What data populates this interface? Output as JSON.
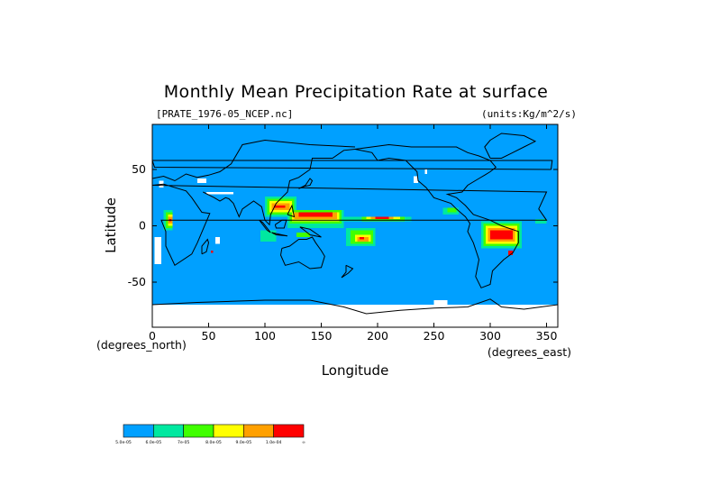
{
  "chart_data": {
    "type": "heatmap",
    "title": "Monthly Mean Precipitation Rate at surface",
    "source_label": "[PRATE_1976-05_NCEP.nc]",
    "units_label": "(units:Kg/m^2/s)",
    "xlabel": "Longitude",
    "ylabel": "Latitude",
    "x_unit_label": "(degrees_east)",
    "y_unit_label": "(degrees_north)",
    "xlim": [
      0,
      360
    ],
    "ylim": [
      -90,
      90
    ],
    "x_ticks": [
      "0",
      "50",
      "100",
      "150",
      "200",
      "250",
      "300",
      "350"
    ],
    "x_tick_values": [
      0,
      50,
      100,
      150,
      200,
      250,
      300,
      350
    ],
    "y_ticks": [
      "50",
      "0",
      "-50"
    ],
    "y_tick_values": [
      50,
      0,
      -50
    ],
    "colorbar": {
      "colors": [
        "#00a0ff",
        "#00e8a0",
        "#40ff00",
        "#ffff00",
        "#ffa000",
        "#ff0000"
      ],
      "labels": [
        "5.0e-05",
        "6.0e-05",
        "7e-05",
        "8.0e-05",
        "9.0e-05",
        "1.0e-04",
        "∞"
      ]
    },
    "background_color": "#00a0ff",
    "regions": [
      {
        "level": "no_data",
        "cells": [
          [
            6,
            34,
            10,
            40
          ],
          [
            48,
            30,
            72,
            28
          ],
          [
            2,
            -10,
            8,
            -34
          ],
          [
            60,
            -10,
            56,
            -16
          ],
          [
            0,
            -70,
            360,
            -90
          ],
          [
            232,
            44,
            236,
            38
          ],
          [
            242,
            50,
            244,
            46
          ],
          [
            40,
            42,
            48,
            38
          ],
          [
            250,
            -70,
            262,
            -66
          ]
        ]
      },
      {
        "level": 1,
        "cells": [
          [
            8,
            16,
            20,
            -8
          ],
          [
            96,
            28,
            130,
            4
          ],
          [
            112,
            16,
            170,
            -6
          ],
          [
            140,
            8,
            240,
            2
          ],
          [
            170,
            0,
            200,
            -20
          ],
          [
            290,
            6,
            330,
            -22
          ],
          [
            255,
            18,
            275,
            8
          ],
          [
            52,
            -18,
            56,
            -28
          ],
          [
            256,
            -26,
            264,
            -32
          ],
          [
            150,
            -36,
            160,
            -42
          ],
          [
            236,
            42,
            244,
            38
          ],
          [
            300,
            44,
            312,
            38
          ]
        ]
      },
      {
        "level": 2,
        "cells": [
          [
            10,
            14,
            18,
            -4
          ],
          [
            100,
            26,
            128,
            8
          ],
          [
            120,
            14,
            170,
            -2
          ],
          [
            150,
            8,
            230,
            4
          ],
          [
            172,
            -2,
            198,
            -18
          ],
          [
            292,
            4,
            328,
            -20
          ],
          [
            258,
            16,
            272,
            10
          ],
          [
            96,
            -4,
            110,
            -14
          ],
          [
            340,
            6,
            350,
            2
          ]
        ]
      },
      {
        "level": 3,
        "cells": [
          [
            12,
            12,
            18,
            -2
          ],
          [
            102,
            24,
            126,
            10
          ],
          [
            122,
            14,
            168,
            2
          ],
          [
            186,
            8,
            224,
            4
          ],
          [
            176,
            -4,
            196,
            -16
          ],
          [
            294,
            2,
            326,
            -18
          ],
          [
            262,
            16,
            270,
            12
          ],
          [
            128,
            -6,
            140,
            -10
          ]
        ]
      },
      {
        "level": 4,
        "cells": [
          [
            14,
            10,
            18,
            0
          ],
          [
            104,
            22,
            124,
            12
          ],
          [
            124,
            12,
            166,
            4
          ],
          [
            190,
            8,
            220,
            6
          ],
          [
            180,
            -8,
            194,
            -14
          ],
          [
            296,
            0,
            324,
            -16
          ]
        ]
      },
      {
        "level": 5,
        "cells": [
          [
            14,
            8,
            18,
            2
          ],
          [
            106,
            20,
            122,
            14
          ],
          [
            126,
            12,
            164,
            6
          ],
          [
            194,
            8,
            214,
            6
          ],
          [
            182,
            -10,
            192,
            -14
          ],
          [
            298,
            -2,
            322,
            -14
          ]
        ]
      },
      {
        "level": 6,
        "cells": [
          [
            15,
            6,
            17,
            4
          ],
          [
            108,
            18,
            118,
            16
          ],
          [
            130,
            12,
            160,
            8
          ],
          [
            198,
            8,
            210,
            6
          ],
          [
            184,
            -10,
            188,
            -12
          ],
          [
            300,
            -4,
            320,
            -12
          ],
          [
            316,
            -22,
            320,
            -26
          ],
          [
            52,
            -22,
            54,
            -24
          ]
        ]
      }
    ],
    "coastlines": [
      [
        [
          0,
          36
        ],
        [
          10,
          37
        ],
        [
          30,
          31
        ],
        [
          35,
          25
        ],
        [
          44,
          12
        ],
        [
          51,
          11
        ],
        [
          40,
          -15
        ],
        [
          35,
          -25
        ],
        [
          20,
          -35
        ],
        [
          12,
          -18
        ],
        [
          12,
          -5
        ],
        [
          8,
          5
        ],
        [
          -10,
          5
        ],
        [
          -17,
          15
        ],
        [
          -10,
          30
        ],
        [
          0,
          36
        ]
      ],
      [
        [
          45,
          30
        ],
        [
          55,
          25
        ],
        [
          60,
          22
        ],
        [
          65,
          25
        ],
        [
          68,
          24
        ],
        [
          72,
          20
        ],
        [
          77,
          8
        ],
        [
          80,
          15
        ],
        [
          90,
          22
        ],
        [
          97,
          17
        ],
        [
          100,
          5
        ],
        [
          104,
          1
        ],
        [
          105,
          10
        ],
        [
          110,
          20
        ],
        [
          120,
          30
        ],
        [
          122,
          40
        ],
        [
          130,
          43
        ],
        [
          140,
          50
        ],
        [
          142,
          60
        ],
        [
          160,
          60
        ],
        [
          170,
          67
        ],
        [
          180,
          68
        ]
      ],
      [
        [
          0,
          42
        ],
        [
          10,
          44
        ],
        [
          20,
          40
        ],
        [
          30,
          46
        ],
        [
          40,
          43
        ],
        [
          50,
          45
        ],
        [
          60,
          48
        ],
        [
          70,
          55
        ],
        [
          80,
          72
        ],
        [
          100,
          76
        ],
        [
          140,
          72
        ],
        [
          180,
          70
        ]
      ],
      [
        [
          180,
          68
        ],
        [
          195,
          65
        ],
        [
          200,
          58
        ],
        [
          210,
          60
        ],
        [
          225,
          58
        ],
        [
          235,
          48
        ],
        [
          236,
          40
        ],
        [
          243,
          34
        ],
        [
          250,
          25
        ],
        [
          265,
          20
        ],
        [
          270,
          15
        ],
        [
          278,
          8
        ],
        [
          282,
          2
        ],
        [
          280,
          -5
        ],
        [
          285,
          -15
        ],
        [
          290,
          -30
        ],
        [
          287,
          -45
        ],
        [
          292,
          -55
        ],
        [
          300,
          -52
        ],
        [
          302,
          -40
        ],
        [
          312,
          -30
        ],
        [
          320,
          -24
        ],
        [
          325,
          -15
        ],
        [
          325,
          -5
        ],
        [
          310,
          0
        ],
        [
          300,
          5
        ],
        [
          285,
          10
        ],
        [
          278,
          18
        ],
        [
          270,
          25
        ],
        [
          262,
          28
        ],
        [
          275,
          30
        ],
        [
          280,
          36
        ],
        [
          290,
          42
        ],
        [
          295,
          45
        ],
        [
          300,
          48
        ],
        [
          305,
          52
        ],
        [
          300,
          58
        ],
        [
          290,
          62
        ],
        [
          280,
          65
        ],
        [
          270,
          70
        ],
        [
          250,
          70
        ],
        [
          230,
          70
        ],
        [
          210,
          72
        ],
        [
          195,
          70
        ],
        [
          180,
          68
        ]
      ],
      [
        [
          115,
          -20
        ],
        [
          122,
          -18
        ],
        [
          130,
          -12
        ],
        [
          137,
          -12
        ],
        [
          142,
          -10
        ],
        [
          145,
          -15
        ],
        [
          150,
          -22
        ],
        [
          153,
          -27
        ],
        [
          150,
          -37
        ],
        [
          140,
          -38
        ],
        [
          130,
          -32
        ],
        [
          118,
          -35
        ],
        [
          114,
          -26
        ],
        [
          115,
          -20
        ]
      ],
      [
        [
          44,
          -25
        ],
        [
          48,
          -23
        ],
        [
          50,
          -15
        ],
        [
          49,
          -12
        ],
        [
          44,
          -18
        ],
        [
          44,
          -25
        ]
      ],
      [
        [
          300,
          60
        ],
        [
          310,
          60
        ],
        [
          320,
          65
        ],
        [
          330,
          70
        ],
        [
          340,
          75
        ],
        [
          330,
          80
        ],
        [
          310,
          82
        ],
        [
          300,
          76
        ],
        [
          295,
          70
        ],
        [
          300,
          60
        ]
      ],
      [
        [
          95,
          5
        ],
        [
          98,
          3
        ],
        [
          105,
          -6
        ],
        [
          102,
          -4
        ],
        [
          95,
          5
        ]
      ],
      [
        [
          106,
          -6
        ],
        [
          115,
          -8
        ],
        [
          120,
          -9
        ],
        [
          110,
          -8
        ],
        [
          106,
          -6
        ]
      ],
      [
        [
          109,
          1
        ],
        [
          115,
          5
        ],
        [
          119,
          5
        ],
        [
          117,
          -2
        ],
        [
          110,
          -2
        ],
        [
          109,
          1
        ]
      ],
      [
        [
          120,
          10
        ],
        [
          124,
          18
        ],
        [
          126,
          8
        ],
        [
          120,
          10
        ]
      ],
      [
        [
          131,
          -1
        ],
        [
          140,
          -3
        ],
        [
          150,
          -10
        ],
        [
          140,
          -8
        ],
        [
          135,
          -4
        ],
        [
          131,
          -1
        ]
      ],
      [
        [
          130,
          33
        ],
        [
          135,
          35
        ],
        [
          140,
          36
        ],
        [
          142,
          40
        ],
        [
          140,
          42
        ],
        [
          136,
          36
        ],
        [
          130,
          33
        ]
      ],
      [
        [
          0,
          -70
        ],
        [
          40,
          -68
        ],
        [
          70,
          -67
        ],
        [
          100,
          -66
        ],
        [
          140,
          -66
        ],
        [
          170,
          -72
        ],
        [
          190,
          -78
        ],
        [
          220,
          -75
        ],
        [
          250,
          -73
        ],
        [
          280,
          -72
        ],
        [
          300,
          -65
        ],
        [
          310,
          -72
        ],
        [
          330,
          -74
        ],
        [
          360,
          -70
        ]
      ],
      [
        [
          172,
          -35
        ],
        [
          178,
          -38
        ],
        [
          174,
          -42
        ],
        [
          168,
          -46
        ],
        [
          172,
          -41
        ],
        [
          172,
          -35
        ]
      ],
      [
        [
          -6,
          50
        ],
        [
          2,
          52
        ],
        [
          0,
          58
        ],
        [
          -5,
          58
        ],
        [
          -6,
          50
        ]
      ]
    ]
  }
}
